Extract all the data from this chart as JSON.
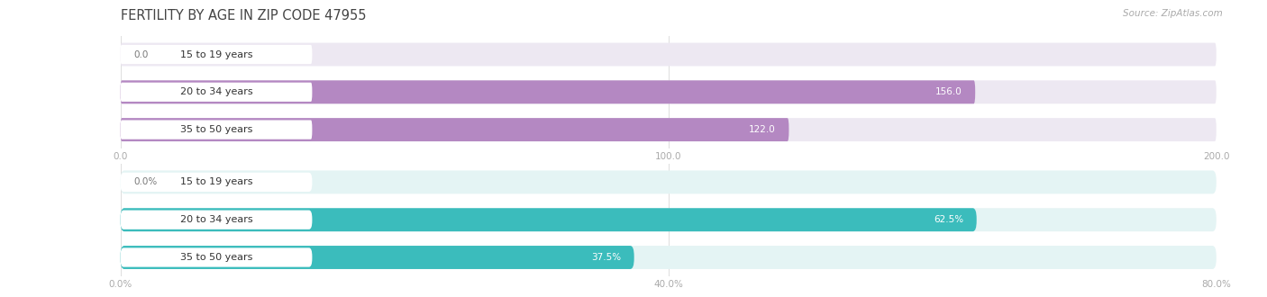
{
  "title": "FERTILITY BY AGE IN ZIP CODE 47955",
  "source": "Source: ZipAtlas.com",
  "top_chart": {
    "categories": [
      "15 to 19 years",
      "20 to 34 years",
      "35 to 50 years"
    ],
    "values": [
      0.0,
      156.0,
      122.0
    ],
    "xlim": [
      0,
      200
    ],
    "xticks": [
      0.0,
      100.0,
      200.0
    ],
    "xtick_labels": [
      "0.0",
      "100.0",
      "200.0"
    ],
    "bar_color": "#b488c2",
    "bar_bg_color": "#ede8f2",
    "label_color_inside": "#ffffff",
    "label_color_outside": "#777777"
  },
  "bottom_chart": {
    "categories": [
      "15 to 19 years",
      "20 to 34 years",
      "35 to 50 years"
    ],
    "values": [
      0.0,
      62.5,
      37.5
    ],
    "xlim": [
      0,
      80
    ],
    "xticks": [
      0.0,
      40.0,
      80.0
    ],
    "xtick_labels": [
      "0.0%",
      "40.0%",
      "80.0%"
    ],
    "bar_color": "#3bbcbc",
    "bar_bg_color": "#e4f4f4",
    "label_color_inside": "#ffffff",
    "label_color_outside": "#777777"
  },
  "background_color": "#ffffff",
  "title_fontsize": 10.5,
  "source_fontsize": 7.5,
  "bar_label_fontsize": 7.5,
  "category_fontsize": 8,
  "tick_fontsize": 7.5,
  "bar_height": 0.62,
  "title_color": "#444444",
  "tick_color": "#aaaaaa",
  "category_text_color": "#333333",
  "grid_color": "#dddddd"
}
